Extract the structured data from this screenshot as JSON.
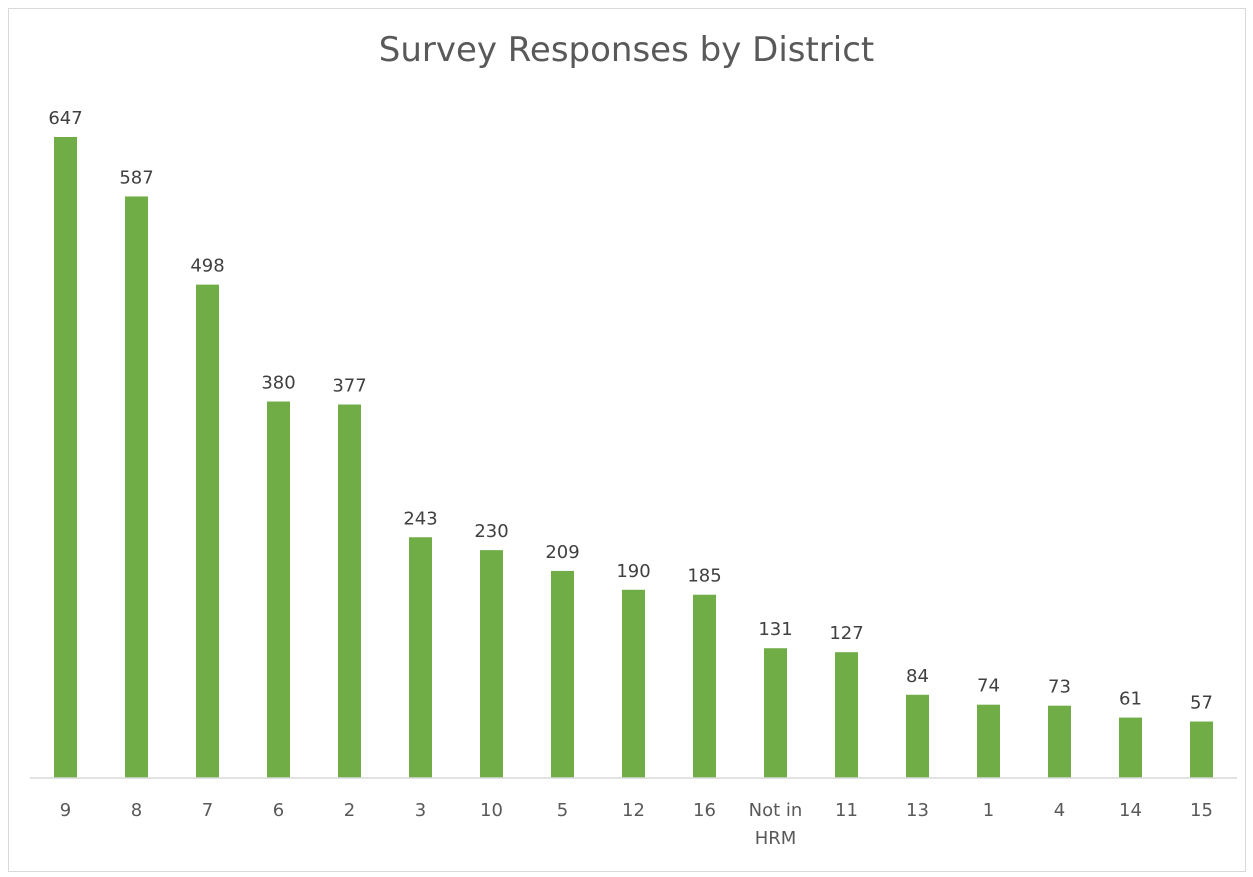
{
  "chart_data": {
    "type": "bar",
    "title": "Survey Responses by District",
    "xlabel": "",
    "ylabel": "",
    "categories": [
      "9",
      "8",
      "7",
      "6",
      "2",
      "3",
      "10",
      "5",
      "12",
      "16",
      "Not in HRM",
      "11",
      "13",
      "1",
      "4",
      "14",
      "15"
    ],
    "values": [
      647,
      587,
      498,
      380,
      377,
      243,
      230,
      209,
      190,
      185,
      131,
      127,
      84,
      74,
      73,
      61,
      57
    ],
    "ylim": [
      0,
      647
    ],
    "grid": false,
    "legend": "none",
    "data_labels": true,
    "bar_color": "#70ad47",
    "axis_color": "#d9d9d9"
  }
}
